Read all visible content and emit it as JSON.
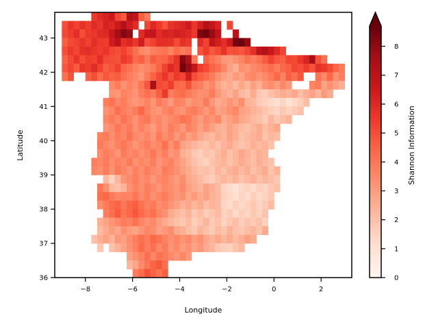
{
  "chart_data": {
    "type": "heatmap",
    "title": "",
    "xlabel": "Longitude",
    "ylabel": "Latitude",
    "xlim": [
      -9.3,
      3.3
    ],
    "ylim": [
      36.0,
      43.75
    ],
    "cell_size_deg": 0.25,
    "x_ticks": [
      -8,
      -6,
      -4,
      -2,
      0,
      2
    ],
    "y_ticks": [
      36,
      37,
      38,
      39,
      40,
      41,
      42,
      43
    ],
    "x_tick_labels": [
      "−8",
      "−6",
      "−4",
      "−2",
      "0",
      "2"
    ],
    "y_tick_labels": [
      "36",
      "37",
      "38",
      "39",
      "40",
      "41",
      "42",
      "43"
    ],
    "colorbar": {
      "label": "Shannon Information",
      "min": 0,
      "max": 8.7,
      "extend": "max",
      "ticks": [
        0,
        1,
        2,
        3,
        4,
        5,
        6,
        7,
        8
      ],
      "tick_labels": [
        "0",
        "1",
        "2",
        "3",
        "4",
        "5",
        "6",
        "7",
        "8"
      ],
      "colormap": "Reds",
      "colormap_stops": [
        "#fff5f0",
        "#fee0d2",
        "#fcbba1",
        "#fc9272",
        "#fb6a4a",
        "#ef3b2c",
        "#cb181d",
        "#a50f15",
        "#67000d"
      ]
    },
    "rows": [
      {
        "lat": 43.625,
        "lon_start": -7.75,
        "values": [
          5.5,
          5.9,
          6.2,
          6.5,
          5.2,
          4.8,
          7.2,
          6.8,
          4.6,
          3.9
        ]
      },
      {
        "lat": 43.375,
        "lon_start": -9.0,
        "values": [
          5.0,
          5.6,
          5.3,
          5.7,
          5.4,
          5.9,
          5.6,
          6.2,
          6.0,
          6.5,
          7.2,
          6.4,
          5.9,
          null,
          5.2,
          6.0,
          5.5,
          4.9,
          5.7,
          5.9,
          6.1,
          6.4,
          5.6,
          6.3,
          7.2,
          6.8,
          6.2,
          null,
          5.2
        ]
      },
      {
        "lat": 43.125,
        "lon_start": -9.0,
        "values": [
          5.1,
          5.4,
          5.8,
          5.0,
          5.5,
          5.6,
          5.9,
          6.0,
          6.7,
          7.6,
          8.2,
          7.9,
          null,
          5.9,
          6.6,
          6.8,
          5.9,
          6.2,
          6.1,
          6.3,
          6.2,
          6.0,
          5.5,
          8.3,
          8.5,
          7.8,
          6.9,
          null,
          null,
          7.0,
          null
        ]
      },
      {
        "lat": 42.875,
        "lon_start": -9.0,
        "values": [
          4.6,
          5.1,
          5.3,
          5.6,
          5.3,
          5.8,
          5.5,
          5.4,
          6.4,
          7.0,
          5.8,
          6.1,
          5.6,
          6.4,
          5.0,
          5.3,
          5.8,
          5.8,
          5.7,
          5.1,
          5.7,
          5.5,
          null,
          5.9,
          5.3,
          6.9,
          6.3,
          5.8,
          6.5,
          8.4,
          8.6,
          7.9
        ]
      },
      {
        "lat": 42.625,
        "lon_start": -9.0,
        "values": [
          5.0,
          5.5,
          5.2,
          5.7,
          5.8,
          5.6,
          5.4,
          5.6,
          5.2,
          5.0,
          5.3,
          4.8,
          4.2,
          3.6,
          3.4,
          3.8,
          4.0,
          4.1,
          3.7,
          4.3,
          3.9,
          4.2,
          null,
          4.9,
          5.4,
          4.8,
          5.1,
          5.7,
          4.9,
          5.0,
          4.8,
          5.2,
          5.8,
          6.9,
          7.2,
          6.6,
          6.0,
          5.2
        ]
      },
      {
        "lat": 42.375,
        "lon_start": -9.0,
        "values": [
          4.5,
          5.1,
          5.6,
          5.0,
          5.4,
          5.3,
          5.8,
          5.1,
          5.0,
          4.9,
          5.5,
          5.2,
          4.3,
          4.6,
          3.9,
          4.7,
          4.4,
          4.5,
          5.0,
          5.7,
          8.1,
          7.2,
          4.0,
          null,
          4.5,
          4.1,
          3.7,
          3.1,
          3.0,
          3.3,
          3.6,
          4.1,
          3.8,
          4.2,
          4.7,
          5.3,
          4.8,
          4.6,
          5.2,
          5.1,
          5.6,
          6.2,
          7.5,
          4.9,
          4.2
        ]
      },
      {
        "lat": 42.125,
        "lon_start": -9.0,
        "values": [
          4.8,
          5.2,
          4.7,
          5.6,
          5.4,
          5.9,
          5.3,
          4.6,
          4.9,
          5.3,
          4.4,
          4.1,
          3.7,
          3.4,
          3.6,
          3.9,
          4.5,
          5.3,
          6.0,
          5.6,
          8.5,
          7.8,
          6.8,
          5.4,
          5.1,
          4.5,
          4.2,
          3.6,
          2.9,
          2.5,
          3.3,
          3.1,
          3.5,
          3.7,
          4.0,
          4.3,
          3.8,
          4.4,
          4.6,
          5.2,
          5.0,
          5.4,
          4.9,
          5.7,
          5.5,
          5.1,
          4.4,
          3.9
        ]
      },
      {
        "lat": 41.875,
        "lon_start": -9.0,
        "values": [
          4.1,
          4.9,
          null,
          null,
          4.6,
          5.0,
          4.3,
          4.8,
          4.5,
          4.7,
          4.2,
          3.8,
          3.5,
          3.2,
          3.9,
          4.5,
          5.1,
          5.6,
          4.9,
          5.5,
          5.2,
          6.3,
          5.0,
          4.6,
          4.3,
          3.9,
          3.3,
          2.9,
          2.6,
          3.0,
          2.8,
          3.4,
          3.6,
          3.2,
          3.5,
          3.9,
          4.4,
          3.7,
          4.6,
          4.2,
          4.8,
          null,
          null,
          4.1,
          3.6,
          4.4,
          3.3,
          3.8
        ]
      },
      {
        "lat": 41.625,
        "lon_start": -7.0,
        "values": [
          3.5,
          3.9,
          3.3,
          3.7,
          3.4,
          4.0,
          4.8,
          7.5,
          5.1,
          4.9,
          5.4,
          4.4,
          4.3,
          4.9,
          4.0,
          3.8,
          3.2,
          3.6,
          2.8,
          2.4,
          2.6,
          2.2,
          2.7,
          2.3,
          2.9,
          2.5,
          3.2,
          3.4,
          3.0,
          3.5,
          3.1,
          null,
          null,
          null,
          3.6,
          3.9,
          2.8,
          3.3,
          2.9,
          2.5
        ]
      },
      {
        "lat": 41.375,
        "lon_start": -7.0,
        "values": [
          3.3,
          3.1,
          3.7,
          3.5,
          3.2,
          3.8,
          4.2,
          3.9,
          4.6,
          5.5,
          3.8,
          4.1,
          4.3,
          3.9,
          3.6,
          3.3,
          3.4,
          3.9,
          3.1,
          2.7,
          2.4,
          2.8,
          2.2,
          2.0,
          2.6,
          1.8,
          1.6,
          2.0,
          2.3,
          2.6,
          2.4,
          2.7,
          2.1,
          2.5,
          2.8,
          2.3,
          3.0,
          2.6
        ]
      },
      {
        "lat": 41.125,
        "lon_start": -7.25,
        "values": [
          3.8,
          4.1,
          3.6,
          3.9,
          3.4,
          3.1,
          3.3,
          3.7,
          3.2,
          3.9,
          3.5,
          3.1,
          3.7,
          3.6,
          3.0,
          3.4,
          3.3,
          3.9,
          3.1,
          2.6,
          2.8,
          3.2,
          2.9,
          3.4,
          2.4,
          2.2,
          1.7,
          1.5,
          1.3,
          1.1,
          1.4,
          1.0,
          1.3,
          1.6,
          2.1
        ]
      },
      {
        "lat": 40.875,
        "lon_start": -7.25,
        "values": [
          3.3,
          3.6,
          4.2,
          3.8,
          3.5,
          3.9,
          4.4,
          3.7,
          3.3,
          3.1,
          3.6,
          3.8,
          3.4,
          3.2,
          3.7,
          3.9,
          3.5,
          3.1,
          3.6,
          2.8,
          3.0,
          3.3,
          3.6,
          2.9,
          2.7,
          2.4,
          2.2,
          1.9,
          1.6,
          1.4,
          1.8,
          1.5,
          1.7,
          2.0
        ]
      },
      {
        "lat": 40.625,
        "lon_start": -7.25,
        "values": [
          3.6,
          3.9,
          3.5,
          4.1,
          3.7,
          3.3,
          3.8,
          4.0,
          3.4,
          3.6,
          3.2,
          3.5,
          3.7,
          4.1,
          3.9,
          3.4,
          3.0,
          3.5,
          3.2,
          3.6,
          2.6,
          2.9,
          3.2,
          2.7,
          2.5,
          2.2,
          2.0,
          1.7,
          2.3,
          1.8,
          2.1,
          2.4
        ]
      },
      {
        "lat": 40.375,
        "lon_start": -7.25,
        "values": [
          3.2,
          3.5,
          4.0,
          3.6,
          3.9,
          3.3,
          3.7,
          3.4,
          3.0,
          3.6,
          3.2,
          3.8,
          3.5,
          3.1,
          3.7,
          3.4,
          2.9,
          3.3,
          2.8,
          2.5,
          2.4,
          2.8,
          2.5,
          2.2,
          2.0,
          2.3,
          2.6,
          2.1,
          2.4,
          2.7
        ]
      },
      {
        "lat": 40.125,
        "lon_start": -7.5,
        "values": [
          3.7,
          3.9,
          3.4,
          3.8,
          3.6,
          4.1,
          3.5,
          3.3,
          3.6,
          3.2,
          3.9,
          3.4,
          3.7,
          3.1,
          3.5,
          2.9,
          3.2,
          2.7,
          2.4,
          2.2,
          2.6,
          2.3,
          2.8,
          2.5,
          2.0,
          2.2,
          2.4,
          2.6,
          1.9,
          2.3,
          2.1
        ]
      },
      {
        "lat": 39.875,
        "lon_start": -7.5,
        "values": [
          3.9,
          3.5,
          3.3,
          3.7,
          4.0,
          3.6,
          3.2,
          3.5,
          3.8,
          3.4,
          3.6,
          4.2,
          3.3,
          3.9,
          2.8,
          2.6,
          2.3,
          2.1,
          1.9,
          2.3,
          2.0,
          2.4,
          2.6,
          2.2,
          1.9,
          2.1,
          2.5,
          2.2,
          2.4,
          2.0
        ]
      },
      {
        "lat": 39.625,
        "lon_start": -7.5,
        "values": [
          3.4,
          3.8,
          3.6,
          3.2,
          3.9,
          3.5,
          3.7,
          3.3,
          3.6,
          4.0,
          3.4,
          3.8,
          3.1,
          3.4,
          2.5,
          2.3,
          1.8,
          1.6,
          2.0,
          1.8,
          2.2,
          2.5,
          2.0,
          2.3,
          2.7,
          2.4,
          2.1,
          2.5,
          2.3
        ]
      },
      {
        "lat": 39.375,
        "lon_start": -7.75,
        "values": [
          3.8,
          3.6,
          3.9,
          3.4,
          3.7,
          3.5,
          3.9,
          3.3,
          3.6,
          3.4,
          3.8,
          3.2,
          3.5,
          3.7,
          3.2,
          2.8,
          2.4,
          2.0,
          1.7,
          1.5,
          1.9,
          2.2,
          2.4,
          2.0,
          2.3,
          2.6,
          2.3,
          2.1,
          2.5,
          2.2,
          2.0
        ]
      },
      {
        "lat": 39.125,
        "lon_start": -7.75,
        "values": [
          3.6,
          3.4,
          3.8,
          3.3,
          3.9,
          3.6,
          3.2,
          3.7,
          3.4,
          3.8,
          3.5,
          3.3,
          3.9,
          3.6,
          3.3,
          2.9,
          2.6,
          2.2,
          1.9,
          2.1,
          1.8,
          2.3,
          2.0,
          2.4,
          2.6,
          2.2,
          2.5,
          2.0,
          2.3,
          2.6,
          1.9,
          2.4
        ]
      },
      {
        "lat": 38.875,
        "lon_start": -7.25,
        "values": [
          2.2,
          1.5,
          2.3,
          3.2,
          3.5,
          3.8,
          3.4,
          3.6,
          3.1,
          3.5,
          3.7,
          3.3,
          3.0,
          3.4,
          2.7,
          2.5,
          2.2,
          1.8,
          1.6,
          2.0,
          2.3,
          2.1,
          2.4,
          1.9,
          2.2,
          2.5,
          2.0,
          2.3,
          2.1,
          1.8
        ]
      },
      {
        "lat": 38.625,
        "lon_start": -7.5,
        "values": [
          4.0,
          3.3,
          2.2,
          2.0,
          2.4,
          3.3,
          3.7,
          3.4,
          3.8,
          3.5,
          3.2,
          3.6,
          3.4,
          3.1,
          3.5,
          2.9,
          2.6,
          2.4,
          2.8,
          2.5,
          2.2,
          1.4,
          1.2,
          1.0,
          1.3,
          1.5,
          1.2,
          1.6,
          1.4,
          1.8,
          2.0
        ]
      },
      {
        "lat": 38.375,
        "lon_start": -7.5,
        "values": [
          4.2,
          4.4,
          3.9,
          3.5,
          3.7,
          3.6,
          4.0,
          3.5,
          3.8,
          3.3,
          3.6,
          3.9,
          3.4,
          3.1,
          3.3,
          2.7,
          3.0,
          2.6,
          2.9,
          2.4,
          2.2,
          1.5,
          1.3,
          1.1,
          1.4,
          1.2,
          1.6,
          1.3,
          1.5,
          1.8
        ]
      },
      {
        "lat": 38.125,
        "lon_start": -7.5,
        "values": [
          3.4,
          3.9,
          4.3,
          4.5,
          4.0,
          4.4,
          4.6,
          4.1,
          3.7,
          3.9,
          3.4,
          3.6,
          3.2,
          2.9,
          2.5,
          2.7,
          2.3,
          2.6,
          2.1,
          2.4,
          2.2,
          1.4,
          1.2,
          1.6,
          1.3,
          1.5,
          1.8,
          1.4,
          1.7,
          2.2
        ]
      },
      {
        "lat": 37.875,
        "lon_start": -7.25,
        "values": [
          3.8,
          4.2,
          4.7,
          4.1,
          4.4,
          4.8,
          4.3,
          3.9,
          4.2,
          3.6,
          3.3,
          2.6,
          2.3,
          2.0,
          2.4,
          1.8,
          2.1,
          1.6,
          1.9,
          2.2,
          1.5,
          1.7,
          1.3,
          1.6,
          1.4,
          1.8,
          1.5,
          1.9
        ]
      },
      {
        "lat": 37.625,
        "lon_start": -7.5,
        "values": [
          2.5,
          2.8,
          3.2,
          3.5,
          3.9,
          3.7,
          4.1,
          3.6,
          3.3,
          3.5,
          3.0,
          2.6,
          2.3,
          2.0,
          1.8,
          2.2,
          1.6,
          1.9,
          2.3,
          1.7,
          2.0,
          1.5,
          1.8,
          2.1,
          1.6,
          1.9,
          1.7,
          2.0,
          1.5
        ]
      },
      {
        "lat": 37.375,
        "lon_start": -7.5,
        "values": [
          2.2,
          2.6,
          3.0,
          2.7,
          3.3,
          3.0,
          2.8,
          3.2,
          3.6,
          3.4,
          2.9,
          3.1,
          3.4,
          2.7,
          2.5,
          2.1,
          1.8,
          2.3,
          2.0,
          1.7,
          2.2,
          1.9,
          2.4,
          2.0,
          1.8,
          2.1,
          2.3,
          1.9,
          2.6
        ]
      },
      {
        "lat": 37.125,
        "lon_start": -7.75,
        "values": [
          2.0,
          2.5,
          2.8,
          2.4,
          3.1,
          2.9,
          3.4,
          3.8,
          4.2,
          3.9,
          4.4,
          4.1,
          3.7,
          3.3,
          3.6,
          3.2,
          3.5,
          3.0,
          3.3,
          2.7,
          2.4,
          2.7,
          2.3,
          2.6,
          2.2,
          2.5,
          2.9,
          2.6
        ]
      },
      {
        "lat": 36.875,
        "lon_start": -7.5,
        "values": [
          1.8,
          null,
          2.0,
          2.4,
          2.8,
          3.3,
          3.7,
          4.3,
          3.8,
          4.2,
          3.6,
          3.9,
          3.2,
          3.5,
          3.0,
          3.3,
          2.8,
          3.1,
          2.6,
          2.3,
          1.8,
          1.6,
          1.5,
          1.9,
          2.2
        ]
      },
      {
        "lat": 36.625,
        "lon_start": -6.25,
        "values": [
          2.9,
          3.3,
          3.7,
          4.2,
          3.6,
          4.1,
          3.9,
          3.5,
          3.2,
          3.6,
          3.1
        ]
      },
      {
        "lat": 36.375,
        "lon_start": -6.25,
        "values": [
          2.3,
          2.7,
          3.5,
          4.0,
          4.5,
          4.8,
          4.2
        ]
      },
      {
        "lat": 36.125,
        "lon_start": -6.0,
        "values": [
          3.8,
          4.3,
          4.9,
          4.5,
          4.1,
          4.6
        ]
      }
    ]
  }
}
